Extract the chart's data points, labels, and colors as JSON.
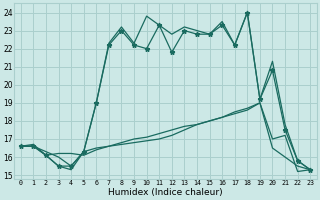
{
  "title": "",
  "xlabel": "Humidex (Indice chaleur)",
  "bg_color": "#cce8e6",
  "grid_color": "#aacfcd",
  "line_color": "#1a6b60",
  "xlim": [
    -0.5,
    23.5
  ],
  "ylim": [
    14.8,
    24.5
  ],
  "yticks": [
    15,
    16,
    17,
    18,
    19,
    20,
    21,
    22,
    23,
    24
  ],
  "xticks": [
    0,
    1,
    2,
    3,
    4,
    5,
    6,
    7,
    8,
    9,
    10,
    11,
    12,
    13,
    14,
    15,
    16,
    17,
    18,
    19,
    20,
    21,
    22,
    23
  ],
  "line_bottom": [
    16.6,
    16.7,
    16.1,
    16.2,
    16.2,
    16.1,
    16.4,
    16.6,
    16.8,
    17.0,
    17.1,
    17.3,
    17.5,
    17.7,
    17.8,
    18.0,
    18.2,
    18.5,
    18.7,
    19.0,
    17.0,
    17.2,
    15.2,
    15.3
  ],
  "line_middle_bottom": [
    16.6,
    16.6,
    16.1,
    15.5,
    15.3,
    16.3,
    16.5,
    16.6,
    16.7,
    16.8,
    16.9,
    17.0,
    17.2,
    17.5,
    17.8,
    18.0,
    18.2,
    18.4,
    18.6,
    19.0,
    16.5,
    16.0,
    15.5,
    15.3
  ],
  "line_zigzag": [
    16.6,
    16.6,
    16.1,
    15.5,
    15.5,
    16.3,
    19.0,
    22.2,
    23.0,
    22.2,
    22.0,
    23.3,
    21.8,
    23.0,
    22.8,
    22.8,
    23.3,
    22.2,
    24.0,
    19.2,
    20.8,
    17.5,
    15.8,
    15.3
  ],
  "line_upper": [
    16.6,
    16.6,
    16.3,
    16.0,
    15.5,
    16.3,
    19.0,
    22.3,
    23.2,
    22.3,
    23.8,
    23.3,
    22.8,
    23.2,
    23.0,
    22.8,
    23.5,
    22.2,
    24.0,
    19.2,
    21.3,
    17.8,
    15.8,
    15.3
  ]
}
